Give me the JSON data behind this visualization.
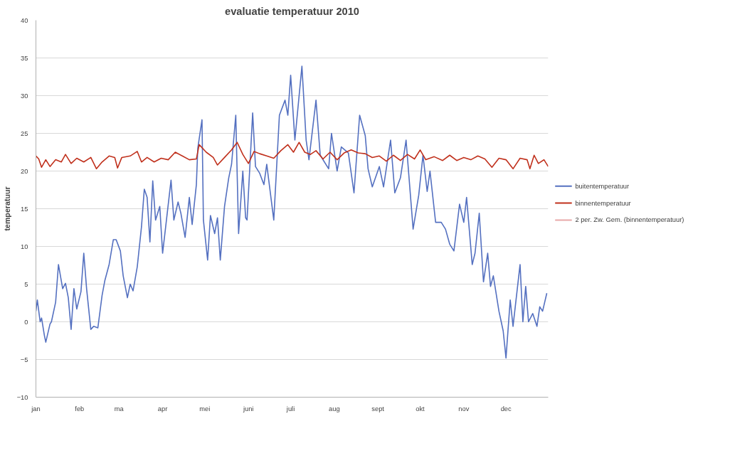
{
  "chart_data": {
    "type": "line",
    "title": "evaluatie temperatuur 2010",
    "ylabel": "temperatuur",
    "xlim": [
      "2010-01-01",
      "2010-12-31"
    ],
    "ylim": [
      -10,
      40
    ],
    "xticks": [
      {
        "value": "2010-01-01",
        "label": "jan"
      },
      {
        "value": "2010-02-01",
        "label": "feb"
      },
      {
        "value": "2010-03-01",
        "label": "ma"
      },
      {
        "value": "2010-04-01",
        "label": "apr"
      },
      {
        "value": "2010-05-01",
        "label": "mei"
      },
      {
        "value": "2010-06-01",
        "label": "juni"
      },
      {
        "value": "2010-07-01",
        "label": "juli"
      },
      {
        "value": "2010-08-01",
        "label": "aug"
      },
      {
        "value": "2010-09-01",
        "label": "sept"
      },
      {
        "value": "2010-10-01",
        "label": "okt"
      },
      {
        "value": "2010-11-01",
        "label": "nov"
      },
      {
        "value": "2010-12-01",
        "label": "dec"
      }
    ],
    "yticks": [
      -10,
      -5,
      0,
      5,
      10,
      15,
      20,
      25,
      30,
      35,
      40
    ],
    "grid": "y",
    "legend": "right",
    "line_style": "solid",
    "series": [
      {
        "name": "buitentemperatuur",
        "color": "#5470c0",
        "x": [
          "2010-01-01",
          "2010-01-02",
          "2010-01-04",
          "2010-01-05",
          "2010-01-07",
          "2010-01-08",
          "2010-01-11",
          "2010-01-12",
          "2010-01-15",
          "2010-01-17",
          "2010-01-20",
          "2010-01-22",
          "2010-01-24",
          "2010-01-26",
          "2010-01-28",
          "2010-01-30",
          "2010-02-02",
          "2010-02-04",
          "2010-02-06",
          "2010-02-09",
          "2010-02-11",
          "2010-02-14",
          "2010-02-17",
          "2010-02-19",
          "2010-02-22",
          "2010-02-25",
          "2010-02-27",
          "2010-03-02",
          "2010-03-04",
          "2010-03-07",
          "2010-03-09",
          "2010-03-11",
          "2010-03-14",
          "2010-03-17",
          "2010-03-19",
          "2010-03-21",
          "2010-03-23",
          "2010-03-25",
          "2010-03-27",
          "2010-03-30",
          "2010-04-01",
          "2010-04-03",
          "2010-04-07",
          "2010-04-09",
          "2010-04-12",
          "2010-04-14",
          "2010-04-17",
          "2010-04-20",
          "2010-04-22",
          "2010-04-25",
          "2010-04-26",
          "2010-04-29",
          "2010-04-30",
          "2010-05-03",
          "2010-05-05",
          "2010-05-08",
          "2010-05-10",
          "2010-05-12",
          "2010-05-15",
          "2010-05-18",
          "2010-05-20",
          "2010-05-23",
          "2010-05-25",
          "2010-05-28",
          "2010-05-30",
          "2010-05-31",
          "2010-06-04",
          "2010-06-06",
          "2010-06-09",
          "2010-06-12",
          "2010-06-14",
          "2010-06-19",
          "2010-06-23",
          "2010-06-27",
          "2010-06-29",
          "2010-07-01",
          "2010-07-04",
          "2010-07-09",
          "2010-07-12",
          "2010-07-14",
          "2010-07-19",
          "2010-07-22",
          "2010-07-28",
          "2010-07-30",
          "2010-08-03",
          "2010-08-06",
          "2010-08-11",
          "2010-08-15",
          "2010-08-19",
          "2010-08-23",
          "2010-08-25",
          "2010-08-28",
          "2010-09-02",
          "2010-09-05",
          "2010-09-10",
          "2010-09-13",
          "2010-09-17",
          "2010-09-21",
          "2010-09-26",
          "2010-09-30",
          "2010-10-03",
          "2010-10-06",
          "2010-10-08",
          "2010-10-12",
          "2010-10-16",
          "2010-10-19",
          "2010-10-22",
          "2010-10-25",
          "2010-10-29",
          "2010-11-01",
          "2010-11-03",
          "2010-11-07",
          "2010-11-09",
          "2010-11-12",
          "2010-11-15",
          "2010-11-18",
          "2010-11-20",
          "2010-11-22",
          "2010-11-26",
          "2010-11-29",
          "2010-12-01",
          "2010-12-04",
          "2010-12-06",
          "2010-12-11",
          "2010-12-13",
          "2010-12-15",
          "2010-12-17",
          "2010-12-20",
          "2010-12-23",
          "2010-12-25",
          "2010-12-27",
          "2010-12-30"
        ],
        "values": [
          1.4,
          2.9,
          0,
          0.5,
          -1.8,
          -2.7,
          -0.3,
          0,
          2.6,
          7.6,
          4.4,
          5.1,
          3.2,
          -1,
          4.4,
          1.7,
          4,
          9.1,
          4.4,
          -1,
          -0.6,
          -0.8,
          3.5,
          5.5,
          7.6,
          10.9,
          10.9,
          9.4,
          6.1,
          3.2,
          5,
          4.1,
          7.3,
          12.6,
          17.6,
          16.5,
          10.6,
          18.7,
          13.5,
          15.3,
          9.1,
          12.3,
          18.8,
          13.5,
          15.9,
          14.4,
          11.2,
          16.5,
          12.9,
          18.2,
          23,
          26.8,
          13.5,
          8.2,
          14.1,
          11.7,
          13.8,
          8.2,
          15.3,
          19.1,
          20.9,
          27.4,
          11.7,
          20,
          13.8,
          13.5,
          27.7,
          20.6,
          19.7,
          18.2,
          20.9,
          13.5,
          27.4,
          29.4,
          27.4,
          32.7,
          24.1,
          33.9,
          24.1,
          21.5,
          29.4,
          22.1,
          20.3,
          25,
          20,
          23.2,
          22.4,
          17.1,
          27.4,
          24.7,
          20.3,
          17.9,
          20.6,
          17.9,
          24.1,
          17.1,
          19.1,
          24.1,
          12.3,
          16.8,
          22.1,
          17.3,
          20,
          13.2,
          13.2,
          12.3,
          10.3,
          9.4,
          15.6,
          13.2,
          16.5,
          7.6,
          9.1,
          14.4,
          5.3,
          9.1,
          4.7,
          6.1,
          1.4,
          -1.2,
          -4.8,
          2.9,
          -0.6,
          7.6,
          0,
          4.7,
          0,
          1.1,
          -0.6,
          2,
          1.4,
          3.8
        ]
      },
      {
        "name": "binnentemperatuur",
        "color": "#c0301c",
        "x": [
          "2010-01-01",
          "2010-01-03",
          "2010-01-05",
          "2010-01-08",
          "2010-01-11",
          "2010-01-15",
          "2010-01-19",
          "2010-01-22",
          "2010-01-26",
          "2010-01-30",
          "2010-02-04",
          "2010-02-09",
          "2010-02-13",
          "2010-02-17",
          "2010-02-22",
          "2010-02-26",
          "2010-02-28",
          "2010-03-03",
          "2010-03-09",
          "2010-03-14",
          "2010-03-17",
          "2010-03-21",
          "2010-03-26",
          "2010-03-31",
          "2010-04-05",
          "2010-04-10",
          "2010-04-15",
          "2010-04-20",
          "2010-04-25",
          "2010-04-27",
          "2010-05-02",
          "2010-05-07",
          "2010-05-10",
          "2010-05-15",
          "2010-05-20",
          "2010-05-24",
          "2010-05-28",
          "2010-06-01",
          "2010-06-05",
          "2010-06-09",
          "2010-06-14",
          "2010-06-19",
          "2010-06-24",
          "2010-06-29",
          "2010-07-03",
          "2010-07-07",
          "2010-07-11",
          "2010-07-15",
          "2010-07-19",
          "2010-07-24",
          "2010-07-29",
          "2010-08-03",
          "2010-08-08",
          "2010-08-13",
          "2010-08-18",
          "2010-08-23",
          "2010-08-28",
          "2010-09-02",
          "2010-09-07",
          "2010-09-12",
          "2010-09-17",
          "2010-09-22",
          "2010-09-27",
          "2010-10-01",
          "2010-10-05",
          "2010-10-11",
          "2010-10-17",
          "2010-10-22",
          "2010-10-27",
          "2010-11-01",
          "2010-11-06",
          "2010-11-11",
          "2010-11-16",
          "2010-11-21",
          "2010-11-26",
          "2010-12-01",
          "2010-12-06",
          "2010-12-11",
          "2010-12-16",
          "2010-12-18",
          "2010-12-21",
          "2010-12-24",
          "2010-12-28",
          "2010-12-31"
        ],
        "values": [
          22,
          21.6,
          20.5,
          21.5,
          20.6,
          21.5,
          21.2,
          22.2,
          21,
          21.7,
          21.2,
          21.8,
          20.3,
          21.2,
          22,
          21.8,
          20.4,
          21.8,
          22,
          22.6,
          21.2,
          21.8,
          21.2,
          21.7,
          21.5,
          22.5,
          22,
          21.5,
          21.6,
          23.5,
          22.5,
          21.8,
          20.8,
          21.8,
          22.8,
          23.8,
          22.2,
          21,
          22.6,
          22.3,
          22,
          21.7,
          22.7,
          23.5,
          22.5,
          23.8,
          22.5,
          22.2,
          22.7,
          21.6,
          22.5,
          21.5,
          22.4,
          22.8,
          22.4,
          22.3,
          21.8,
          22,
          21.3,
          22.1,
          21.4,
          22.2,
          21.6,
          22.8,
          21.5,
          21.9,
          21.4,
          22.1,
          21.4,
          21.8,
          21.5,
          22,
          21.6,
          20.5,
          21.7,
          21.5,
          20.3,
          21.7,
          21.5,
          20.3,
          22.1,
          21,
          21.5,
          20.6
        ]
      },
      {
        "name": "2 per. Zw. Gem. (binnentemperatuur)",
        "color": "#e8a8a8"
      }
    ]
  }
}
